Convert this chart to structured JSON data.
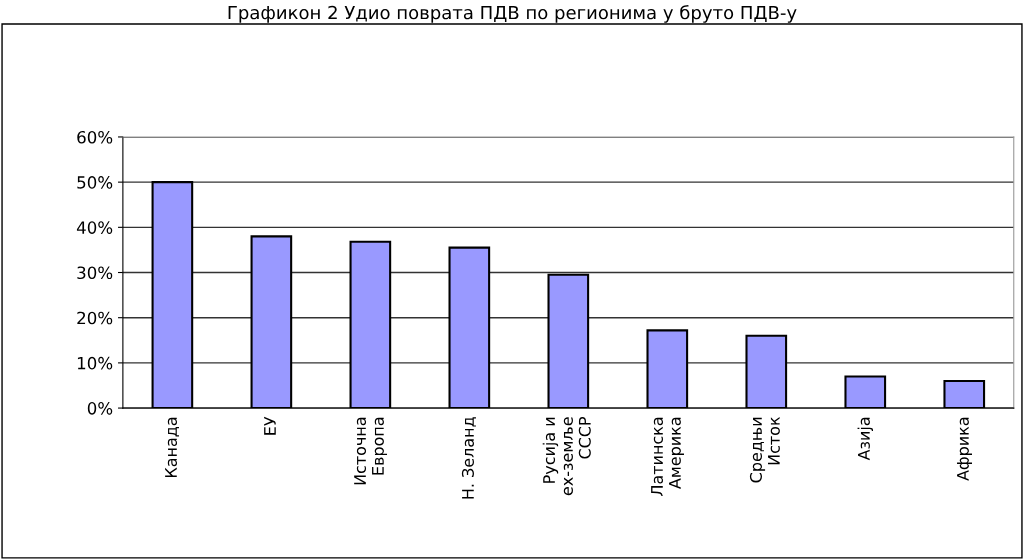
{
  "chart_data": {
    "type": "bar",
    "title": "Графикон 2 Удио поврата ПДВ по регионима у бруто ПДВ-у",
    "categories": [
      "Канада",
      "ЕУ",
      "Источна\nЕвропа",
      "Н. Зеланд",
      "Русија и\nех-земље\nСССР",
      "Латинска\nАмерика",
      "Средњи\nИсток",
      "Азија",
      "Африка"
    ],
    "values": [
      50,
      38,
      36.8,
      35.5,
      29.5,
      17.2,
      16,
      7,
      6
    ],
    "color": "#9999ff",
    "ylim": [
      0,
      60
    ],
    "yticks": [
      {
        "value": 0,
        "label": "0%"
      },
      {
        "value": 10,
        "label": "10%"
      },
      {
        "value": 20,
        "label": "20%"
      },
      {
        "value": 30,
        "label": "30%"
      },
      {
        "value": 40,
        "label": "40%"
      },
      {
        "value": 50,
        "label": "50%"
      },
      {
        "value": 60,
        "label": "60%"
      }
    ],
    "grid": "y",
    "legend": false
  }
}
